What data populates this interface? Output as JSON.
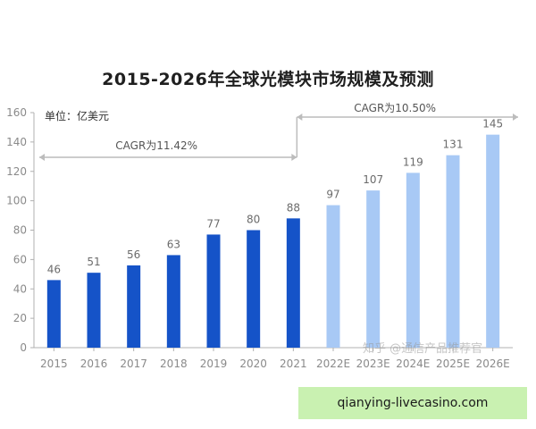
{
  "chart_data": {
    "type": "bar",
    "title": "2015-2026年全球光模块市场规模及预测",
    "unit_label": "单位：亿美元",
    "categories": [
      "2015",
      "2016",
      "2017",
      "2018",
      "2019",
      "2020",
      "2021",
      "2022E",
      "2023E",
      "2024E",
      "2025E",
      "2026E"
    ],
    "values": [
      46,
      51,
      56,
      63,
      77,
      80,
      88,
      97,
      107,
      119,
      131,
      145
    ],
    "ylim": [
      0,
      160
    ],
    "yticks": [
      0,
      20,
      40,
      60,
      80,
      100,
      120,
      140,
      160
    ],
    "grid": false,
    "legend": "none",
    "annotations": [
      {
        "text": "CAGR为11.42%",
        "span": [
          "2015",
          "2021"
        ]
      },
      {
        "text": "CAGR为10.50%",
        "span": [
          "2021",
          "2026E"
        ]
      }
    ],
    "colors": {
      "actual": "#1553c8",
      "forecast": "#a8c9f5",
      "axis": "#b0b0b0",
      "arrow": "#bcbcbc"
    }
  },
  "watermark": "知乎 @通信产品推荐官",
  "banner": "qianying-livecasino.com"
}
